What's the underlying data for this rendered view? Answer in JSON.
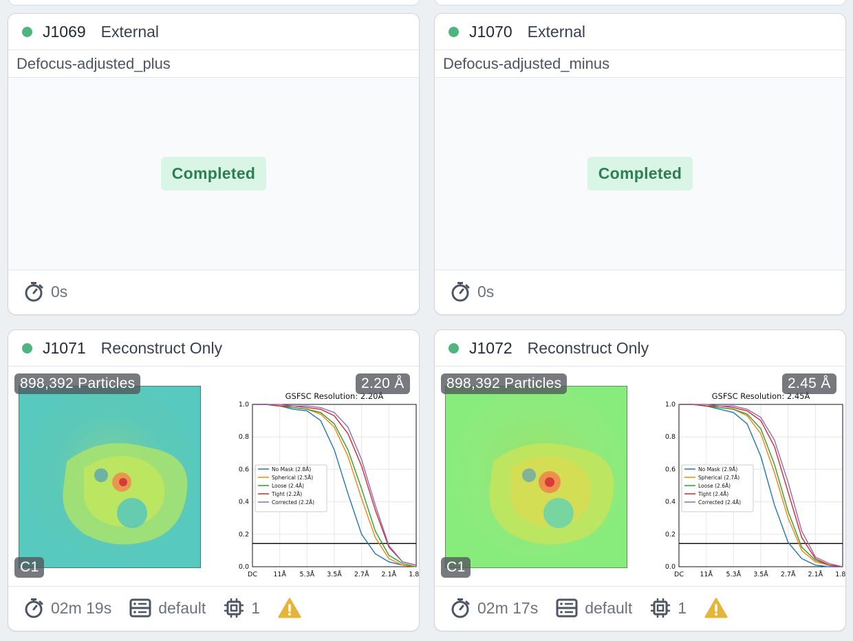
{
  "cards": [
    {
      "job_id": "J1069",
      "job_type": "External",
      "title": "Defocus-adjusted_plus",
      "status": "Completed",
      "time": "0s",
      "status_color": "#4fb47e"
    },
    {
      "job_id": "J1070",
      "job_type": "External",
      "title": "Defocus-adjusted_minus",
      "status": "Completed",
      "time": "0s",
      "status_color": "#4fb47e"
    },
    {
      "job_id": "J1071",
      "job_type": "Reconstruct Only",
      "particles": "898,392 Particles",
      "resolution": "2.20 Å",
      "symmetry": "C1",
      "time": "02m 19s",
      "lane": "default",
      "gpus": "1",
      "icons": [
        "stopwatch-icon",
        "server-icon",
        "chip-icon",
        "warning-icon"
      ],
      "chart_data": {
        "type": "line",
        "title": "GSFSC Resolution: 2.20Å",
        "x_tick_labels": [
          "DC",
          "11Å",
          "5.3Å",
          "3.5Å",
          "2.7Å",
          "2.1Å",
          "1.8Å"
        ],
        "y_ticks": [
          "0.0",
          "0.2",
          "0.4",
          "0.6",
          "0.8",
          "1.0"
        ],
        "ylim": [
          0,
          1
        ],
        "threshold": 0.143,
        "legend_placement": "center-left",
        "series": [
          {
            "name": "No Mask (2.8Å)",
            "color": "#1f77b4",
            "values": [
              1.0,
              1.0,
              0.99,
              0.97,
              0.96,
              0.9,
              0.72,
              0.45,
              0.2,
              0.08,
              0.03,
              0.01,
              0.0
            ]
          },
          {
            "name": "Spherical (2.5Å)",
            "color": "#ff7f0e",
            "values": [
              1.0,
              1.0,
              0.99,
              0.98,
              0.97,
              0.94,
              0.86,
              0.68,
              0.42,
              0.18,
              0.05,
              0.01,
              0.0
            ]
          },
          {
            "name": "Loose (2.4Å)",
            "color": "#2ca02c",
            "values": [
              1.0,
              1.0,
              0.99,
              0.98,
              0.97,
              0.95,
              0.88,
              0.72,
              0.48,
              0.22,
              0.07,
              0.02,
              0.0
            ]
          },
          {
            "name": "Tight (2.2Å)",
            "color": "#d62728",
            "values": [
              1.0,
              1.0,
              0.99,
              0.99,
              0.98,
              0.97,
              0.93,
              0.82,
              0.62,
              0.35,
              0.12,
              0.03,
              0.01
            ]
          },
          {
            "name": "Corrected (2.2Å)",
            "color": "#9467bd",
            "values": [
              1.0,
              1.0,
              1.0,
              0.99,
              0.99,
              0.98,
              0.95,
              0.86,
              0.66,
              0.38,
              0.13,
              0.03,
              0.01
            ]
          }
        ]
      }
    },
    {
      "job_id": "J1072",
      "job_type": "Reconstruct Only",
      "particles": "898,392 Particles",
      "resolution": "2.45 Å",
      "symmetry": "C1",
      "time": "02m 17s",
      "lane": "default",
      "gpus": "1",
      "icons": [
        "stopwatch-icon",
        "server-icon",
        "chip-icon",
        "warning-icon"
      ],
      "chart_data": {
        "type": "line",
        "title": "GSFSC Resolution: 2.45Å",
        "x_tick_labels": [
          "DC",
          "11Å",
          "5.3Å",
          "3.5Å",
          "2.7Å",
          "2.1Å",
          "1.8Å"
        ],
        "y_ticks": [
          "0.0",
          "0.2",
          "0.4",
          "0.6",
          "0.8",
          "1.0"
        ],
        "ylim": [
          0,
          1
        ],
        "threshold": 0.143,
        "legend_placement": "center-left",
        "series": [
          {
            "name": "No Mask (2.9Å)",
            "color": "#1f77b4",
            "values": [
              1.0,
              1.0,
              0.99,
              0.97,
              0.95,
              0.88,
              0.68,
              0.38,
              0.15,
              0.05,
              0.01,
              0.0,
              0.0
            ]
          },
          {
            "name": "Spherical (2.7Å)",
            "color": "#ff7f0e",
            "values": [
              1.0,
              1.0,
              0.99,
              0.98,
              0.97,
              0.93,
              0.82,
              0.58,
              0.3,
              0.1,
              0.03,
              0.01,
              0.0
            ]
          },
          {
            "name": "Loose (2.6Å)",
            "color": "#2ca02c",
            "values": [
              1.0,
              1.0,
              0.99,
              0.98,
              0.97,
              0.94,
              0.85,
              0.63,
              0.34,
              0.12,
              0.04,
              0.01,
              0.0
            ]
          },
          {
            "name": "Tight (2.4Å)",
            "color": "#d62728",
            "values": [
              1.0,
              1.0,
              0.99,
              0.99,
              0.98,
              0.96,
              0.9,
              0.74,
              0.46,
              0.18,
              0.05,
              0.01,
              0.0
            ]
          },
          {
            "name": "Corrected (2.4Å)",
            "color": "#9467bd",
            "values": [
              1.0,
              1.0,
              1.0,
              0.99,
              0.99,
              0.97,
              0.92,
              0.78,
              0.52,
              0.22,
              0.06,
              0.02,
              0.0
            ]
          }
        ]
      }
    }
  ]
}
